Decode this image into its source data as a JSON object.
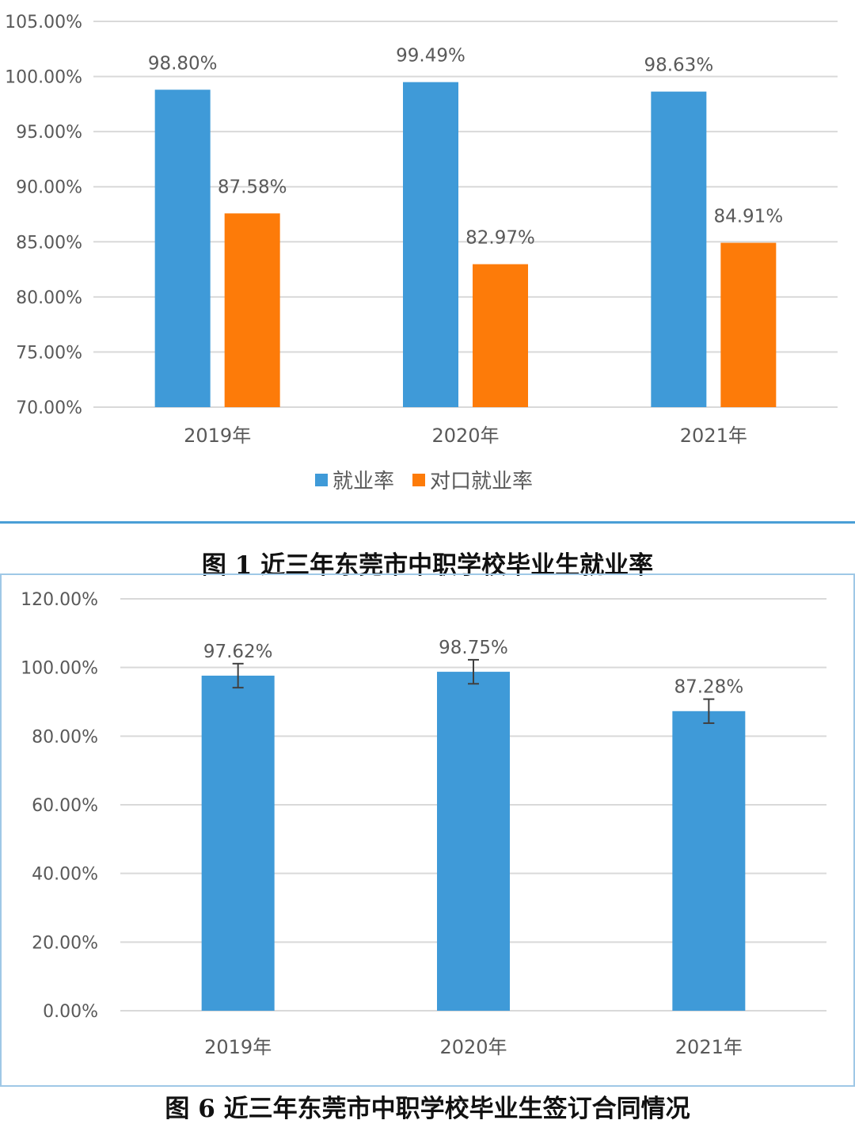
{
  "colors": {
    "employment_blue": "#3f9ad8",
    "matched_orange": "#fd7b09",
    "gridline": "#d9d9d9",
    "axis_text": "#595959"
  },
  "chart_data": [
    {
      "type": "bar",
      "title": "",
      "categories": [
        "2019年",
        "2020年",
        "2021年"
      ],
      "series": [
        {
          "name": "就业率",
          "values": [
            98.8,
            99.49,
            98.63
          ],
          "labels": [
            "98.80%",
            "99.49%",
            "98.63%"
          ],
          "color": "#3f9ad8"
        },
        {
          "name": "对口就业率",
          "values": [
            87.58,
            82.97,
            84.91
          ],
          "labels": [
            "87.58%",
            "82.97%",
            "84.91%"
          ],
          "color": "#fd7b09"
        }
      ],
      "ylim": [
        70,
        105
      ],
      "yticks": [
        70,
        75,
        80,
        85,
        90,
        95,
        100,
        105
      ],
      "ytick_labels": [
        "70.00%",
        "75.00%",
        "80.00%",
        "85.00%",
        "90.00%",
        "95.00%",
        "100.00%",
        "105.00%"
      ],
      "xlabel": "",
      "ylabel": "",
      "grid": true,
      "legend": "bottom-center",
      "caption": "图 1 近三年东莞市中职学校毕业生就业率"
    },
    {
      "type": "bar",
      "title": "",
      "categories": [
        "2019年",
        "2020年",
        "2021年"
      ],
      "series": [
        {
          "name": "签订合同",
          "values": [
            97.62,
            98.75,
            87.28
          ],
          "labels": [
            "97.62%",
            "98.75%",
            "87.28%"
          ],
          "error": [
            3.5,
            3.5,
            3.5
          ],
          "color": "#3f9ad8"
        }
      ],
      "ylim": [
        0,
        120
      ],
      "yticks": [
        0,
        20,
        40,
        60,
        80,
        100,
        120
      ],
      "ytick_labels": [
        "0.00%",
        "20.00%",
        "40.00%",
        "60.00%",
        "80.00%",
        "100.00%",
        "120.00%"
      ],
      "xlabel": "",
      "ylabel": "",
      "grid": true,
      "legend": "none",
      "caption": "图 6 近三年东莞市中职学校毕业生签订合同情况"
    }
  ]
}
